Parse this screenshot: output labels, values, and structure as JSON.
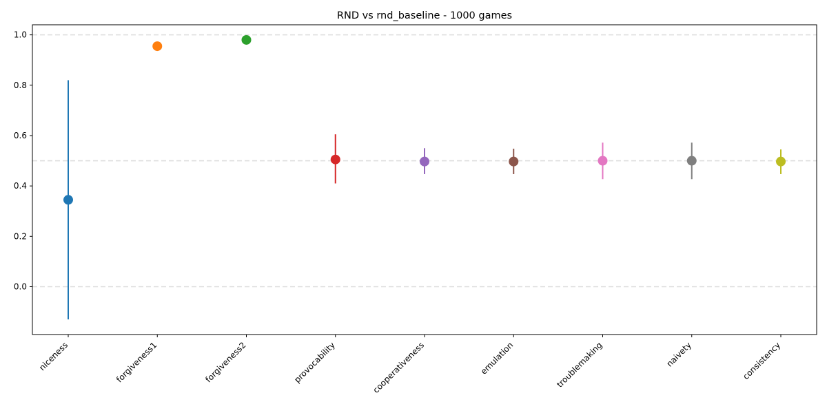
{
  "chart_data": {
    "type": "scatter",
    "title": "RND vs rnd_baseline - 1000 games",
    "xlabel": "",
    "ylabel": "",
    "ylim": [
      -0.19,
      1.04
    ],
    "yticks": [
      0.0,
      0.2,
      0.4,
      0.6,
      0.8,
      1.0
    ],
    "reference_lines": [
      0.0,
      0.5,
      1.0
    ],
    "grid": false,
    "legend": "none",
    "categories": [
      "niceness",
      "forgiveness1",
      "forgiveness2",
      "provocability",
      "cooperativeness",
      "emulation",
      "troublemaking",
      "naivety",
      "consistency"
    ],
    "points": [
      {
        "category": "niceness",
        "value": 0.345,
        "err_low": -0.13,
        "err_high": 0.82,
        "color": "#1f77b4"
      },
      {
        "category": "forgiveness1",
        "value": 0.955,
        "err_low": 0.945,
        "err_high": 0.965,
        "color": "#ff7f0e"
      },
      {
        "category": "forgiveness2",
        "value": 0.98,
        "err_low": 0.975,
        "err_high": 0.985,
        "color": "#2ca02c"
      },
      {
        "category": "provocability",
        "value": 0.505,
        "err_low": 0.41,
        "err_high": 0.605,
        "color": "#d62728"
      },
      {
        "category": "cooperativeness",
        "value": 0.497,
        "err_low": 0.447,
        "err_high": 0.55,
        "color": "#9467bd"
      },
      {
        "category": "emulation",
        "value": 0.497,
        "err_low": 0.447,
        "err_high": 0.548,
        "color": "#8c564b"
      },
      {
        "category": "troublemaking",
        "value": 0.5,
        "err_low": 0.427,
        "err_high": 0.572,
        "color": "#e377c2"
      },
      {
        "category": "naivety",
        "value": 0.5,
        "err_low": 0.427,
        "err_high": 0.572,
        "color": "#7f7f7f"
      },
      {
        "category": "consistency",
        "value": 0.497,
        "err_low": 0.447,
        "err_high": 0.545,
        "color": "#bcbd22"
      }
    ]
  }
}
